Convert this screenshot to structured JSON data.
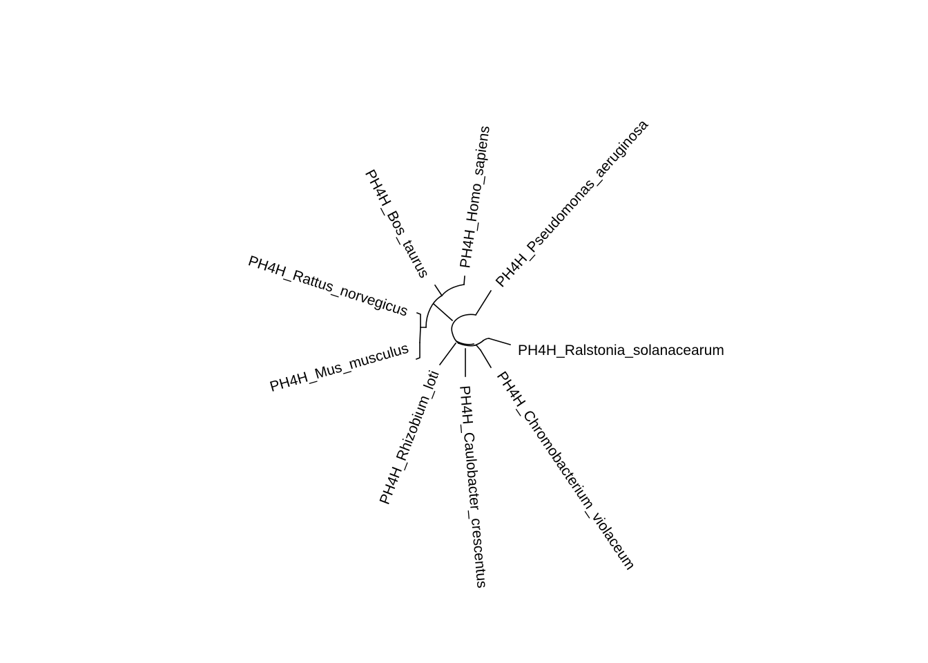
{
  "tree": {
    "layout": "circular-unrooted",
    "line_color": "#000000",
    "taxa": [
      {
        "id": "homo",
        "label": "PH4H_Homo_sapiens"
      },
      {
        "id": "bos",
        "label": "PH4H_Bos_taurus"
      },
      {
        "id": "rattus",
        "label": "PH4H_Rattus_norvegicus"
      },
      {
        "id": "mus",
        "label": "PH4H_Mus_musculus"
      },
      {
        "id": "rhizobium",
        "label": "PH4H_Rhizobium_loti"
      },
      {
        "id": "caulobacter",
        "label": "PH4H_Caulobacter_crescentus"
      },
      {
        "id": "chromobacterium",
        "label": "PH4H_Chromobacterium_violaceum"
      },
      {
        "id": "ralstonia",
        "label": "PH4H_Ralstonia_solanacearum"
      },
      {
        "id": "pseudomonas",
        "label": "PH4H_Pseudomonas_aeruginosa"
      }
    ]
  }
}
